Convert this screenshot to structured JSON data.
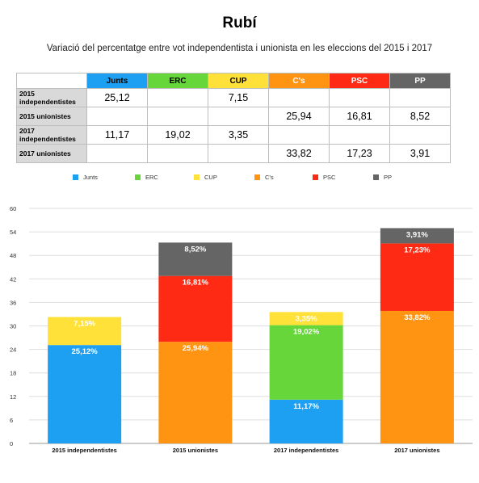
{
  "title": "Rubí",
  "subtitle": "Variació del percentatge entre vot independentista i unionista en les eleccions del 2015 i 2017",
  "table": {
    "columns": [
      {
        "label": "Junts",
        "color": "#1ea0f2"
      },
      {
        "label": "ERC",
        "color": "#66d63a"
      },
      {
        "label": "CUP",
        "color": "#ffe13a"
      },
      {
        "label": "C's",
        "color": "#ff9412"
      },
      {
        "label": "PSC",
        "color": "#ff2a14"
      },
      {
        "label": "PP",
        "color": "#656565"
      }
    ],
    "rows": [
      {
        "label": "2015 independentistes",
        "cells": [
          "25,12",
          "",
          "7,15",
          "",
          "",
          ""
        ]
      },
      {
        "label": "2015 unionistes",
        "cells": [
          "",
          "",
          "",
          "25,94",
          "16,81",
          "8,52"
        ]
      },
      {
        "label": "2017 independentistes",
        "cells": [
          "11,17",
          "19,02",
          "3,35",
          "",
          "",
          ""
        ]
      },
      {
        "label": "2017 unionistes",
        "cells": [
          "",
          "",
          "",
          "33,82",
          "17,23",
          "3,91"
        ]
      }
    ]
  },
  "chart_data": {
    "type": "bar",
    "stacked": true,
    "categories": [
      "2015 independentistes",
      "2015 unionistes",
      "2017 independentistes",
      "2017 unionistes"
    ],
    "series": [
      {
        "name": "Junts",
        "color": "#1ea0f2",
        "values": [
          25.12,
          0,
          11.17,
          0
        ],
        "labels": [
          "25,12%",
          "",
          "11,17%",
          ""
        ]
      },
      {
        "name": "ERC",
        "color": "#66d63a",
        "values": [
          0,
          0,
          19.02,
          0
        ],
        "labels": [
          "",
          "",
          "19,02%",
          ""
        ]
      },
      {
        "name": "CUP",
        "color": "#ffe13a",
        "values": [
          7.15,
          0,
          3.35,
          0
        ],
        "labels": [
          "7,15%",
          "",
          "3,35%",
          ""
        ]
      },
      {
        "name": "C's",
        "color": "#ff9412",
        "values": [
          0,
          25.94,
          0,
          33.82
        ],
        "labels": [
          "",
          "25,94%",
          "",
          "33,82%"
        ]
      },
      {
        "name": "PSC",
        "color": "#ff2a14",
        "values": [
          0,
          16.81,
          0,
          17.23
        ],
        "labels": [
          "",
          "16,81%",
          "",
          "17,23%"
        ]
      },
      {
        "name": "PP",
        "color": "#656565",
        "values": [
          0,
          8.52,
          0,
          3.91
        ],
        "labels": [
          "",
          "8,52%",
          "",
          "3,91%"
        ]
      }
    ],
    "ylim": [
      0,
      60
    ],
    "yticks": [
      "0",
      "6",
      "12",
      "18",
      "24",
      "30",
      "36",
      "42",
      "48",
      "54",
      "60"
    ],
    "grid": true,
    "legend_position": "top"
  }
}
